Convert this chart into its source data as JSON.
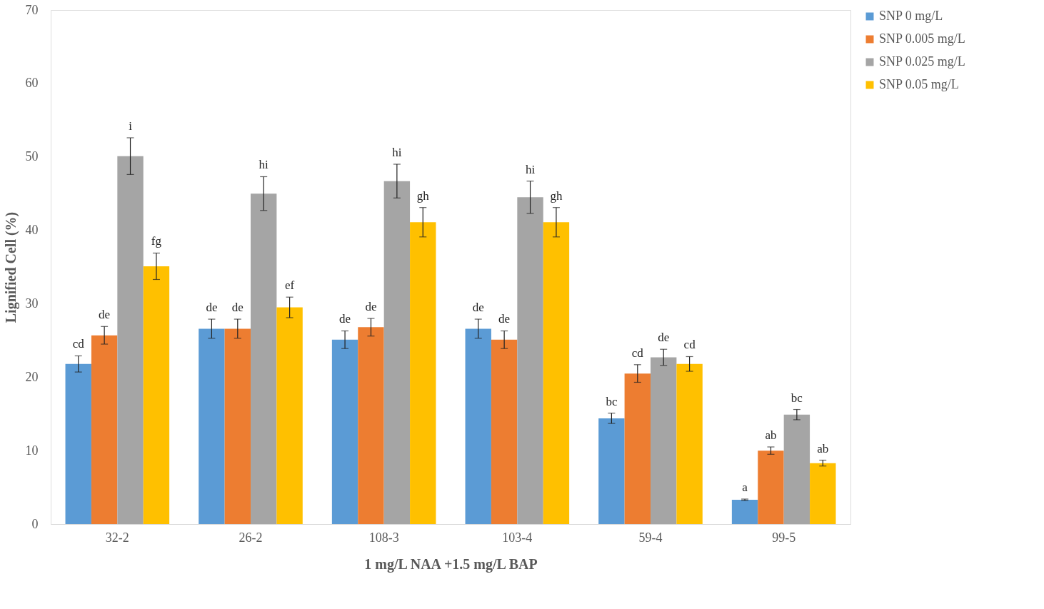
{
  "chart_data": {
    "type": "bar",
    "xlabel": "1 mg/L  NAA +1.5 mg/L BAP",
    "ylabel": "Lignified Cell (%)",
    "categories": [
      "32-2",
      "26-2",
      "108-3",
      "103-4",
      "59-4",
      "99-5"
    ],
    "series": [
      {
        "name": "SNP 0 mg/L",
        "color": "#5b9bd5",
        "values": [
          21.8,
          26.6,
          25.1,
          26.6,
          14.4,
          3.3
        ],
        "errors": [
          1.1,
          1.3,
          1.2,
          1.3,
          0.7,
          0.1
        ],
        "value_labels": [
          "cd",
          "de",
          "de",
          "de",
          "bc",
          "a"
        ]
      },
      {
        "name": "SNP 0.005 mg/L",
        "color": "#ed7d31",
        "values": [
          25.7,
          26.6,
          26.8,
          25.1,
          20.5,
          10.0
        ],
        "errors": [
          1.2,
          1.3,
          1.2,
          1.2,
          1.2,
          0.5
        ],
        "value_labels": [
          "de",
          "de",
          "de",
          "de",
          "cd",
          "ab"
        ]
      },
      {
        "name": "SNP 0.025 mg/L",
        "color": "#a5a5a5",
        "values": [
          50.1,
          45.0,
          46.7,
          44.5,
          22.7,
          14.9
        ],
        "errors": [
          2.5,
          2.3,
          2.3,
          2.2,
          1.1,
          0.7
        ],
        "value_labels": [
          "i",
          "hi",
          "hi",
          "hi",
          "de",
          "bc"
        ]
      },
      {
        "name": "SNP 0.05 mg/L",
        "color": "#ffc000",
        "values": [
          35.1,
          29.5,
          41.1,
          41.1,
          21.8,
          8.3
        ],
        "errors": [
          1.8,
          1.4,
          2.0,
          2.0,
          1.0,
          0.4
        ],
        "value_labels": [
          "fg",
          "ef",
          "gh",
          "gh",
          "cd",
          "ab"
        ]
      }
    ],
    "ylim": [
      0,
      70
    ],
    "yticks": [
      0,
      10,
      20,
      30,
      40,
      50,
      60,
      70
    ],
    "grid": false,
    "legend": "right"
  }
}
